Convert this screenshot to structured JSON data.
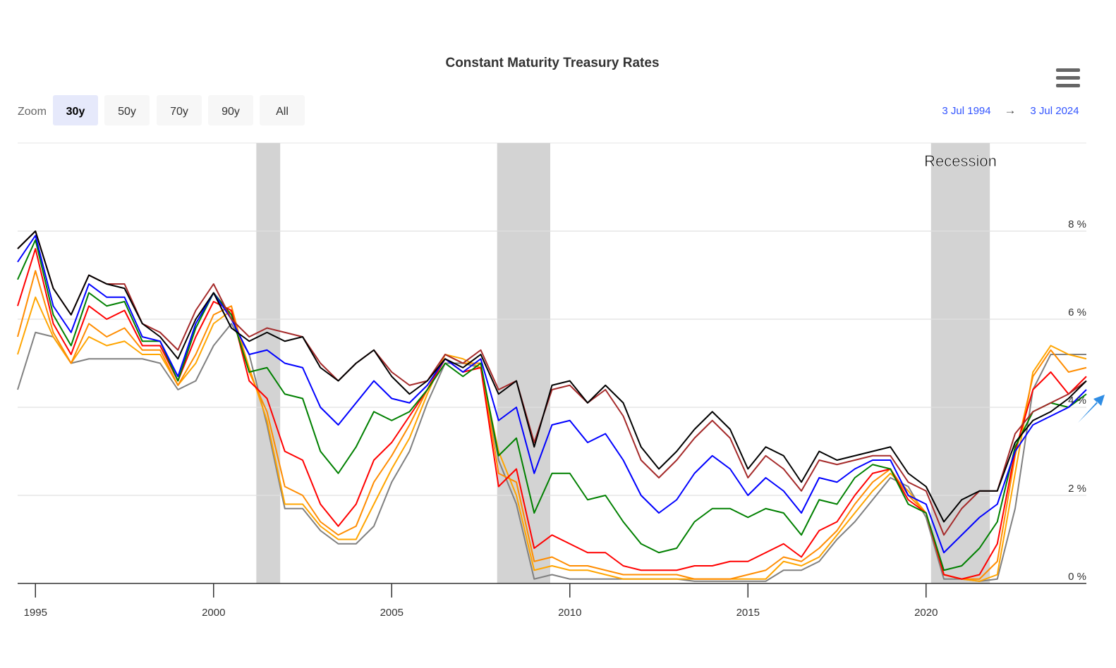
{
  "chart_data": {
    "type": "line",
    "title": "Constant Maturity Treasury Rates",
    "zoom_label": "Zoom",
    "zoom_buttons": [
      "30y",
      "50y",
      "70y",
      "90y",
      "All"
    ],
    "zoom_active": 0,
    "range": {
      "from": "3 Jul 1994",
      "arrow": "→",
      "to": "3 Jul 2024"
    },
    "recession_label": "Recession",
    "recessions": [
      {
        "start": 2001.2,
        "end": 2001.87
      },
      {
        "start": 2007.96,
        "end": 2009.45
      },
      {
        "start": 2020.14,
        "end": 2021.79
      }
    ],
    "recession_color": "#d3d3d3",
    "xlim": [
      1994.5,
      2024.5
    ],
    "xticks": [
      1995,
      2000,
      2005,
      2010,
      2015,
      2020
    ],
    "ylim": [
      0,
      10
    ],
    "yticks": [
      {
        "value": 0,
        "label": "0 %"
      },
      {
        "value": 2,
        "label": "2 %"
      },
      {
        "value": 4,
        "label": "4 %"
      },
      {
        "value": 6,
        "label": "6 %"
      },
      {
        "value": 8,
        "label": "8 %"
      }
    ],
    "grid": true,
    "x": [
      1994.5,
      1995,
      1995.5,
      1996,
      1996.5,
      1997,
      1997.5,
      1998,
      1998.5,
      1999,
      1999.5,
      2000,
      2000.5,
      2001,
      2001.5,
      2002,
      2002.5,
      2003,
      2003.5,
      2004,
      2004.5,
      2005,
      2005.5,
      2006,
      2006.5,
      2007,
      2007.5,
      2008,
      2008.5,
      2009,
      2009.5,
      2010,
      2010.5,
      2011,
      2011.5,
      2012,
      2012.5,
      2013,
      2013.5,
      2014,
      2014.5,
      2015,
      2015.5,
      2016,
      2016.5,
      2017,
      2017.5,
      2018,
      2018.5,
      2019,
      2019.5,
      2020,
      2020.5,
      2021,
      2021.5,
      2022,
      2022.5,
      2023,
      2023.5,
      2024,
      2024.5
    ],
    "series": [
      {
        "color": "#808080",
        "values": [
          4.4,
          5.7,
          5.6,
          5.0,
          5.1,
          5.1,
          5.1,
          5.1,
          5.0,
          4.4,
          4.6,
          5.4,
          5.9,
          5.2,
          3.6,
          1.7,
          1.7,
          1.2,
          0.9,
          0.9,
          1.3,
          2.3,
          3.0,
          4.1,
          5.0,
          5.0,
          4.9,
          2.8,
          1.8,
          0.1,
          0.2,
          0.1,
          0.1,
          0.1,
          0.1,
          0.1,
          0.1,
          0.1,
          0.05,
          0.05,
          0.05,
          0.05,
          0.05,
          0.3,
          0.3,
          0.5,
          1.0,
          1.4,
          1.9,
          2.4,
          2.2,
          1.5,
          0.1,
          0.1,
          0.05,
          0.1,
          1.7,
          4.4,
          5.2,
          5.2,
          5.2
        ]
      },
      {
        "color": "#ffa500",
        "values": [
          5.2,
          6.5,
          5.6,
          5.0,
          5.6,
          5.4,
          5.5,
          5.2,
          5.2,
          4.5,
          5.0,
          5.9,
          6.2,
          4.9,
          3.7,
          1.8,
          1.8,
          1.3,
          1.0,
          1.0,
          1.8,
          2.6,
          3.3,
          4.3,
          5.2,
          5.1,
          4.9,
          3.0,
          2.0,
          0.3,
          0.4,
          0.3,
          0.3,
          0.2,
          0.1,
          0.1,
          0.1,
          0.1,
          0.1,
          0.1,
          0.1,
          0.1,
          0.1,
          0.5,
          0.4,
          0.6,
          1.1,
          1.6,
          2.1,
          2.5,
          2.1,
          1.6,
          0.2,
          0.1,
          0.05,
          0.2,
          2.5,
          4.8,
          5.4,
          5.2,
          5.1
        ]
      },
      {
        "color": "#ff8c00",
        "values": [
          5.6,
          7.1,
          5.7,
          5.0,
          5.9,
          5.6,
          5.8,
          5.3,
          5.3,
          4.5,
          5.2,
          6.1,
          6.3,
          4.8,
          3.9,
          2.2,
          2.0,
          1.4,
          1.1,
          1.3,
          2.3,
          2.9,
          3.6,
          4.4,
          5.2,
          5.0,
          5.0,
          2.5,
          2.3,
          0.5,
          0.6,
          0.4,
          0.4,
          0.3,
          0.2,
          0.2,
          0.2,
          0.2,
          0.1,
          0.1,
          0.1,
          0.2,
          0.3,
          0.6,
          0.5,
          0.8,
          1.2,
          1.8,
          2.3,
          2.6,
          2.0,
          1.6,
          0.2,
          0.1,
          0.1,
          0.5,
          2.9,
          4.7,
          5.3,
          4.8,
          4.9
        ]
      },
      {
        "color": "#ff0000",
        "values": [
          6.3,
          7.6,
          5.9,
          5.2,
          6.3,
          6.0,
          6.2,
          5.4,
          5.4,
          4.6,
          5.6,
          6.4,
          6.2,
          4.6,
          4.2,
          3.0,
          2.8,
          1.8,
          1.3,
          1.8,
          2.8,
          3.2,
          3.8,
          4.4,
          5.1,
          4.8,
          4.9,
          2.2,
          2.6,
          0.8,
          1.1,
          0.9,
          0.7,
          0.7,
          0.4,
          0.3,
          0.3,
          0.3,
          0.4,
          0.4,
          0.5,
          0.5,
          0.7,
          0.9,
          0.6,
          1.2,
          1.4,
          2.0,
          2.5,
          2.6,
          1.9,
          1.6,
          0.2,
          0.1,
          0.2,
          0.9,
          3.0,
          4.4,
          4.8,
          4.3,
          4.7
        ]
      },
      {
        "color": "#008000",
        "values": [
          6.9,
          7.8,
          6.1,
          5.4,
          6.6,
          6.3,
          6.4,
          5.5,
          5.5,
          4.6,
          5.8,
          6.6,
          6.1,
          4.8,
          4.9,
          4.3,
          4.2,
          3.0,
          2.5,
          3.1,
          3.9,
          3.7,
          3.9,
          4.4,
          5.0,
          4.7,
          5.0,
          2.9,
          3.3,
          1.6,
          2.5,
          2.5,
          1.9,
          2.0,
          1.4,
          0.9,
          0.7,
          0.8,
          1.4,
          1.7,
          1.7,
          1.5,
          1.7,
          1.6,
          1.1,
          1.9,
          1.8,
          2.4,
          2.7,
          2.6,
          1.8,
          1.6,
          0.3,
          0.4,
          0.8,
          1.4,
          3.1,
          3.9,
          4.1,
          4.0,
          4.3
        ]
      },
      {
        "color": "#0000ff",
        "values": [
          7.3,
          7.9,
          6.3,
          5.7,
          6.8,
          6.5,
          6.5,
          5.6,
          5.5,
          4.7,
          5.9,
          6.6,
          6.0,
          5.2,
          5.3,
          5.0,
          4.9,
          4.0,
          3.6,
          4.1,
          4.6,
          4.2,
          4.1,
          4.5,
          5.1,
          4.8,
          5.1,
          3.7,
          4.0,
          2.5,
          3.6,
          3.7,
          3.2,
          3.4,
          2.8,
          2.0,
          1.6,
          1.9,
          2.5,
          2.9,
          2.6,
          2.0,
          2.4,
          2.1,
          1.6,
          2.4,
          2.3,
          2.6,
          2.8,
          2.8,
          2.0,
          1.8,
          0.7,
          1.1,
          1.5,
          1.8,
          3.0,
          3.6,
          3.8,
          4.0,
          4.4
        ]
      },
      {
        "color": "#a52a2a",
        "values": [
          7.6,
          8.0,
          6.7,
          6.1,
          7.0,
          6.8,
          6.8,
          5.9,
          5.7,
          5.3,
          6.2,
          6.8,
          6.0,
          5.6,
          5.8,
          5.7,
          5.6,
          5.0,
          4.6,
          5.0,
          5.3,
          4.8,
          4.5,
          4.6,
          5.2,
          5.0,
          5.3,
          4.4,
          4.6,
          3.2,
          4.4,
          4.5,
          4.1,
          4.4,
          3.8,
          2.8,
          2.4,
          2.8,
          3.3,
          3.7,
          3.3,
          2.4,
          2.9,
          2.6,
          2.1,
          2.8,
          2.7,
          2.8,
          2.9,
          2.9,
          2.3,
          2.1,
          1.1,
          1.7,
          2.1,
          2.1,
          3.4,
          3.9,
          4.1,
          4.3,
          4.6
        ]
      },
      {
        "color": "#000000",
        "values": [
          7.6,
          8.0,
          6.7,
          6.1,
          7.0,
          6.8,
          6.7,
          5.9,
          5.6,
          5.1,
          6.0,
          6.6,
          5.8,
          5.5,
          5.7,
          5.5,
          5.6,
          4.9,
          4.6,
          5.0,
          5.3,
          4.7,
          4.3,
          4.6,
          5.1,
          4.9,
          5.2,
          4.3,
          4.6,
          3.1,
          4.5,
          4.6,
          4.1,
          4.5,
          4.1,
          3.1,
          2.6,
          3.0,
          3.5,
          3.9,
          3.5,
          2.6,
          3.1,
          2.9,
          2.3,
          3.0,
          2.8,
          2.9,
          3.0,
          3.1,
          2.5,
          2.2,
          1.4,
          1.9,
          2.1,
          2.1,
          3.2,
          3.7,
          3.9,
          4.2,
          4.6
        ]
      }
    ]
  }
}
